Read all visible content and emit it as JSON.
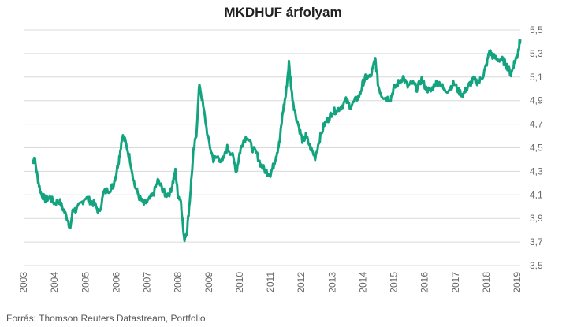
{
  "colors": {
    "line": "#14a37f",
    "grid": "#d9d9d9",
    "text": "#666666"
  },
  "source": "Forrás: Thomson  Reuters Datastream, Portfolio",
  "chart_data": {
    "type": "line",
    "title": "MKDHUF árfolyam",
    "xlabel": "",
    "ylabel": "",
    "ylim": [
      3.5,
      5.5
    ],
    "xlim": [
      2003.0,
      2019.1
    ],
    "grid": "horizontal",
    "legend": "none",
    "y_ticks": [
      "3,5",
      "3,7",
      "3,9",
      "4,1",
      "4,3",
      "4,5",
      "4,7",
      "4,9",
      "5,1",
      "5,3",
      "5,5"
    ],
    "x_ticks": [
      "2003",
      "2004",
      "2005",
      "2006",
      "2007",
      "2008",
      "2009",
      "2010",
      "2011",
      "2012",
      "2013",
      "2014",
      "2015",
      "2016",
      "2017",
      "2018",
      "2019"
    ],
    "series": [
      {
        "x": [
          2003.3,
          2003.35,
          2003.45,
          2003.55,
          2003.7,
          2003.85,
          2004.0,
          2004.15,
          2004.3,
          2004.45,
          2004.5,
          2004.6,
          2004.7,
          2004.85,
          2005.0,
          2005.15,
          2005.3,
          2005.45,
          2005.6,
          2005.8,
          2005.9,
          2006.0,
          2006.1,
          2006.2,
          2006.3,
          2006.45,
          2006.6,
          2006.75,
          2006.9,
          2007.05,
          2007.2,
          2007.35,
          2007.5,
          2007.6,
          2007.75,
          2007.85,
          2007.92,
          2008.0,
          2008.1,
          2008.2,
          2008.3,
          2008.4,
          2008.5,
          2008.6,
          2008.7,
          2008.85,
          2009.0,
          2009.15,
          2009.3,
          2009.45,
          2009.6,
          2009.75,
          2009.9,
          2010.0,
          2010.1,
          2010.25,
          2010.4,
          2010.55,
          2010.7,
          2010.85,
          2011.0,
          2011.1,
          2011.2,
          2011.3,
          2011.4,
          2011.5,
          2011.6,
          2011.7,
          2011.8,
          2011.95,
          2012.05,
          2012.15,
          2012.3,
          2012.45,
          2012.6,
          2012.75,
          2012.9,
          2013.0,
          2013.15,
          2013.3,
          2013.45,
          2013.6,
          2013.75,
          2013.9,
          2014.0,
          2014.1,
          2014.25,
          2014.4,
          2014.5,
          2014.6,
          2014.75,
          2014.9,
          2015.0,
          2015.15,
          2015.3,
          2015.45,
          2015.6,
          2015.75,
          2015.9,
          2016.05,
          2016.2,
          2016.35,
          2016.5,
          2016.65,
          2016.8,
          2016.95,
          2017.1,
          2017.25,
          2017.4,
          2017.5,
          2017.6,
          2017.75,
          2017.9,
          2018.0,
          2018.1,
          2018.2,
          2018.35,
          2018.5,
          2018.6,
          2018.7,
          2018.8,
          2018.9,
          2019.0,
          2019.05,
          2019.1
        ],
        "y": [
          4.38,
          4.42,
          4.25,
          4.12,
          4.06,
          4.08,
          4.03,
          4.05,
          3.97,
          3.88,
          3.8,
          3.98,
          3.97,
          4.02,
          4.08,
          4.05,
          4.02,
          3.95,
          4.12,
          4.15,
          4.18,
          4.28,
          4.42,
          4.6,
          4.55,
          4.4,
          4.18,
          4.08,
          4.02,
          4.05,
          4.1,
          4.22,
          4.15,
          4.1,
          4.12,
          4.22,
          4.3,
          4.1,
          4.05,
          3.72,
          3.8,
          4.1,
          4.45,
          4.62,
          5.05,
          4.8,
          4.55,
          4.4,
          4.42,
          4.38,
          4.5,
          4.45,
          4.3,
          4.45,
          4.55,
          4.6,
          4.5,
          4.45,
          4.35,
          4.3,
          4.28,
          4.35,
          4.45,
          4.55,
          4.8,
          4.95,
          5.22,
          4.95,
          4.8,
          4.65,
          4.55,
          4.6,
          4.5,
          4.42,
          4.58,
          4.7,
          4.75,
          4.8,
          4.82,
          4.85,
          4.9,
          4.85,
          4.9,
          4.95,
          5.05,
          5.1,
          5.1,
          5.25,
          5.02,
          4.95,
          4.92,
          4.92,
          5.0,
          5.05,
          5.1,
          5.02,
          5.05,
          5.0,
          5.08,
          5.0,
          4.98,
          5.05,
          5.05,
          4.98,
          5.0,
          5.05,
          4.98,
          4.95,
          5.02,
          5.05,
          5.08,
          5.05,
          5.12,
          5.2,
          5.32,
          5.28,
          5.25,
          5.25,
          5.22,
          5.18,
          5.12,
          5.22,
          5.28,
          5.35,
          5.42
        ]
      }
    ]
  }
}
